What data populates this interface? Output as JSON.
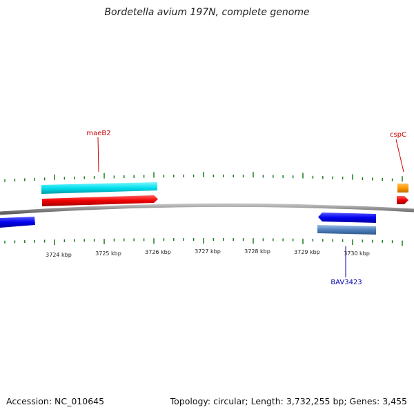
{
  "title": "Bordetella avium 197N, complete genome",
  "footer": {
    "accession": "Accession: NC_010645",
    "summary": "Topology: circular; Length: 3,732,255 bp; Genes: 3,455"
  },
  "map": {
    "tick_labels": [
      "3724 kbp",
      "3725 kbp",
      "3726 kbp",
      "3727 kbp",
      "3728 kbp",
      "3729 kbp",
      "3730 kbp"
    ],
    "gene_labels": [
      {
        "text": "maeB2",
        "color": "#cc0000"
      },
      {
        "text": "cspC",
        "color": "#cc0000"
      },
      {
        "text": "BAV3423",
        "color": "#0000aa"
      }
    ],
    "colors": {
      "backbone": "#8a8a8a",
      "forward_cds": "#ee0000",
      "forward_gene_cyan": "#00e5ee",
      "forward_gene_orange": "#ff9900",
      "reverse_cds": "#0000ee",
      "reverse_gene": "#4f81bd",
      "tick": "#1a7a1a"
    }
  }
}
